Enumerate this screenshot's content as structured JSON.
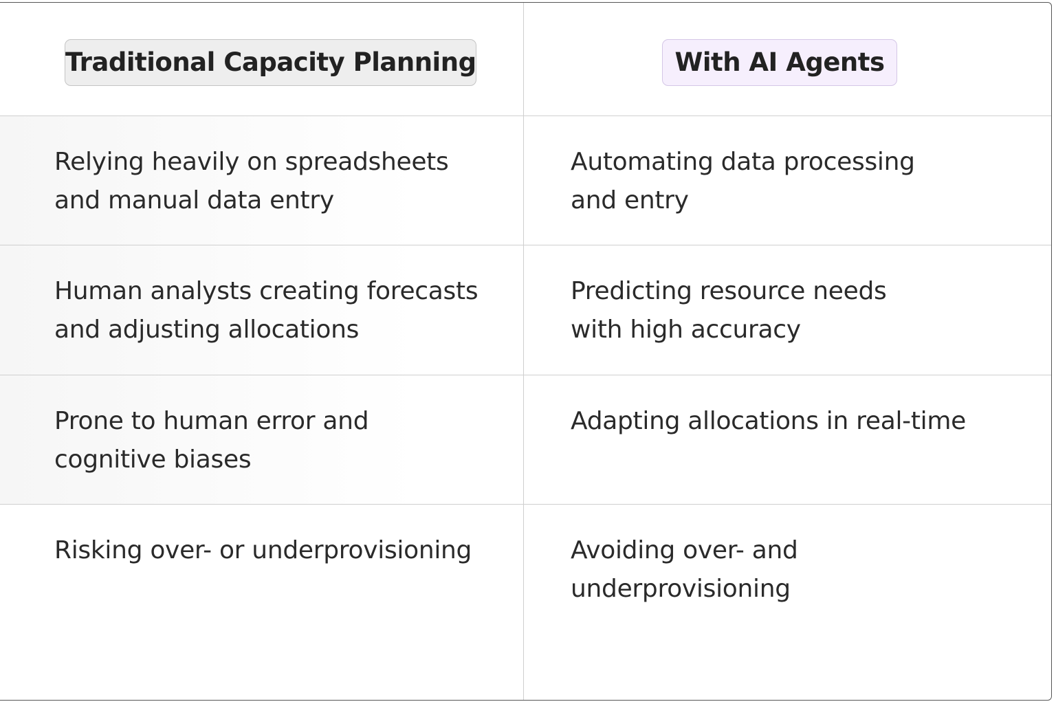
{
  "table": {
    "headers": [
      "Traditional Capacity Planning",
      "With AI Agents"
    ],
    "rows": [
      [
        [
          "Relying heavily on spreadsheets",
          "and manual data entry"
        ],
        [
          "Automating data processing",
          "and entry"
        ]
      ],
      [
        [
          "Human analysts creating forecasts",
          "and adjusting allocations"
        ],
        [
          "Predicting resource needs",
          "with high accuracy"
        ]
      ],
      [
        [
          "Prone to human error and",
          "cognitive biases"
        ],
        [
          "Adapting allocations in real-time"
        ]
      ],
      [
        [
          "Risking over- or underprovisioning"
        ],
        [
          "Avoiding over- and",
          "underprovisioning"
        ]
      ]
    ]
  }
}
